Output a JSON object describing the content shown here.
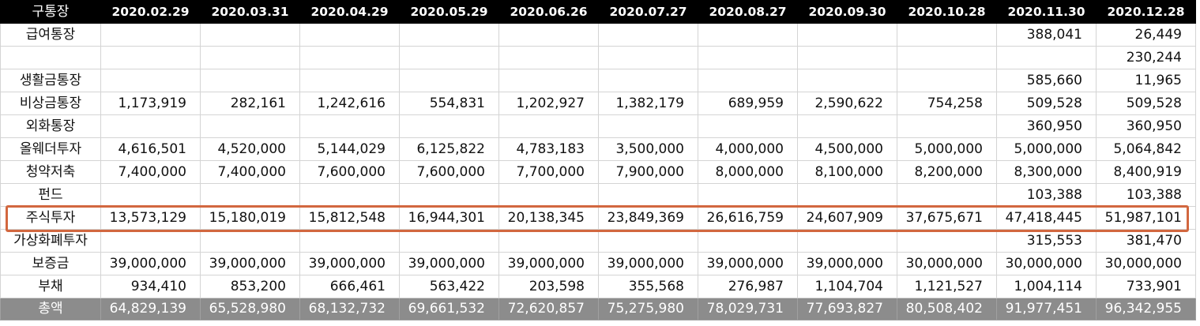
{
  "header": {
    "label": "구통장",
    "dates": [
      "2020.02.29",
      "2020.03.31",
      "2020.04.29",
      "2020.05.29",
      "2020.06.26",
      "2020.07.27",
      "2020.08.27",
      "2020.09.30",
      "2020.10.28",
      "2020.11.30",
      "2020.12.28"
    ]
  },
  "rows": [
    {
      "label": "급여통장",
      "values": [
        "",
        "",
        "",
        "",
        "",
        "",
        "",
        "",
        "",
        "388,041",
        "26,449"
      ]
    },
    {
      "label": "",
      "values": [
        "",
        "",
        "",
        "",
        "",
        "",
        "",
        "",
        "",
        "",
        "230,244"
      ]
    },
    {
      "label": "생활금통장",
      "values": [
        "",
        "",
        "",
        "",
        "",
        "",
        "",
        "",
        "",
        "585,660",
        "11,965"
      ]
    },
    {
      "label": "비상금통장",
      "values": [
        "1,173,919",
        "282,161",
        "1,242,616",
        "554,831",
        "1,202,927",
        "1,382,179",
        "689,959",
        "2,590,622",
        "754,258",
        "509,528",
        "509,528"
      ]
    },
    {
      "label": "외화통장",
      "values": [
        "",
        "",
        "",
        "",
        "",
        "",
        "",
        "",
        "",
        "360,950",
        "360,950"
      ]
    },
    {
      "label": "올웨더투자",
      "values": [
        "4,616,501",
        "4,520,000",
        "5,144,029",
        "6,125,822",
        "4,783,183",
        "3,500,000",
        "4,000,000",
        "4,500,000",
        "5,000,000",
        "5,000,000",
        "5,064,842"
      ]
    },
    {
      "label": "청약저축",
      "values": [
        "7,400,000",
        "7,400,000",
        "7,600,000",
        "7,600,000",
        "7,700,000",
        "7,900,000",
        "8,000,000",
        "8,100,000",
        "8,200,000",
        "8,300,000",
        "8,400,919"
      ]
    },
    {
      "label": "펀드",
      "values": [
        "",
        "",
        "",
        "",
        "",
        "",
        "",
        "",
        "",
        "103,388",
        "103,388"
      ]
    },
    {
      "label": "주식투자",
      "values": [
        "13,573,129",
        "15,180,019",
        "15,812,548",
        "16,944,301",
        "20,138,345",
        "23,849,369",
        "26,616,759",
        "24,607,909",
        "37,675,671",
        "47,418,445",
        "51,987,101"
      ]
    },
    {
      "label": "가상화폐투자",
      "values": [
        "",
        "",
        "",
        "",
        "",
        "",
        "",
        "",
        "",
        "315,553",
        "381,470"
      ]
    },
    {
      "label": "보증금",
      "values": [
        "39,000,000",
        "39,000,000",
        "39,000,000",
        "39,000,000",
        "39,000,000",
        "39,000,000",
        "39,000,000",
        "39,000,000",
        "30,000,000",
        "30,000,000",
        "30,000,000"
      ]
    },
    {
      "label": "부채",
      "values": [
        "934,410",
        "853,200",
        "666,461",
        "563,422",
        "203,598",
        "355,568",
        "276,987",
        "1,104,704",
        "1,121,527",
        "1,004,114",
        "733,901"
      ]
    }
  ],
  "total": {
    "label": "총액",
    "values": [
      "64,829,139",
      "65,528,980",
      "68,132,732",
      "69,661,532",
      "72,620,857",
      "75,275,980",
      "78,029,731",
      "77,693,827",
      "80,508,402",
      "91,977,451",
      "96,342,955"
    ]
  },
  "highlight": {
    "row": "주식투자",
    "color": "#d2673f"
  }
}
